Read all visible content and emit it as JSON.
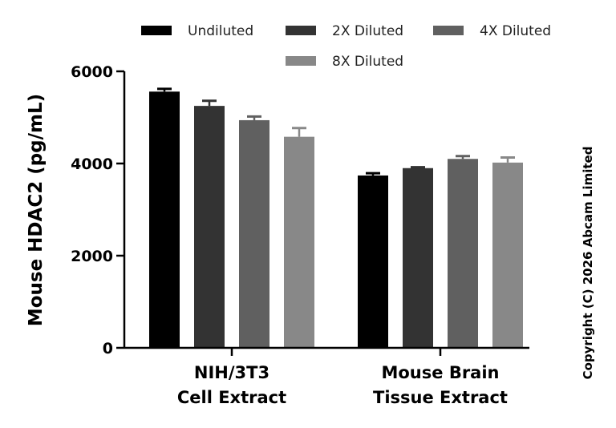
{
  "chart_data": {
    "type": "bar",
    "ylabel": "Mouse HDAC2 (pg/mL)",
    "xlabel": "",
    "ylim": [
      0,
      6000
    ],
    "yticks": [
      "0",
      "2000",
      "4000",
      "6000"
    ],
    "categories": [
      [
        "NIH/3T3",
        "Cell Extract"
      ],
      [
        "Mouse Brain",
        "Tissue Extract"
      ]
    ],
    "legend_position": "top",
    "grid": false,
    "series": [
      {
        "name": "Undiluted",
        "color": "#000000",
        "values": [
          5560,
          3740
        ],
        "errors": [
          60,
          50
        ]
      },
      {
        "name": "2X Diluted",
        "color": "#333333",
        "values": [
          5250,
          3900
        ],
        "errors": [
          110,
          20
        ]
      },
      {
        "name": "4X Diluted",
        "color": "#606060",
        "values": [
          4940,
          4100
        ],
        "errors": [
          80,
          60
        ]
      },
      {
        "name": "8X Diluted",
        "color": "#888888",
        "values": [
          4580,
          4020
        ],
        "errors": [
          190,
          110
        ]
      }
    ]
  },
  "copyright": "Copyright (C) 2026 Abcam Limited"
}
